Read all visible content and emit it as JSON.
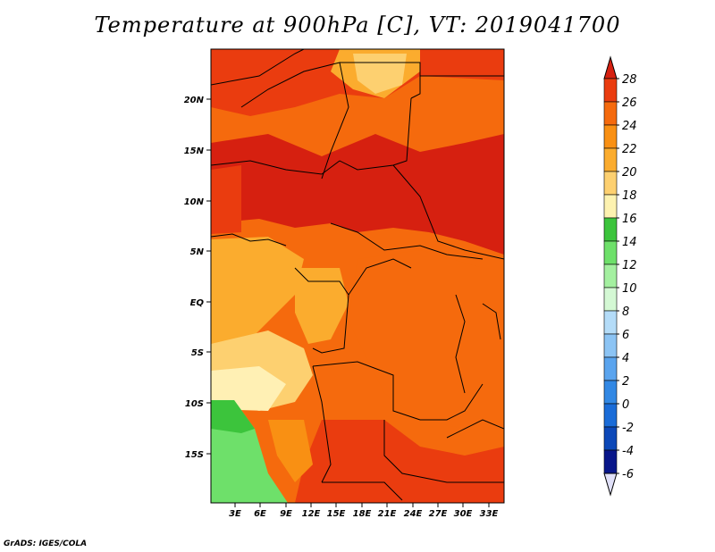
{
  "title": "Temperature at 900hPa [C], VT: 2019041700",
  "credit": "GrADS: IGES/COLA",
  "lat_ticks": [
    "20N",
    "15N",
    "10N",
    "5N",
    "EQ",
    "5S",
    "10S",
    "15S"
  ],
  "lon_ticks": [
    "3E",
    "6E",
    "9E",
    "12E",
    "15E",
    "18E",
    "21E",
    "24E",
    "27E",
    "30E",
    "33E"
  ],
  "colorbar": {
    "labels": [
      "28",
      "26",
      "24",
      "22",
      "20",
      "18",
      "16",
      "14",
      "12",
      "10",
      "8",
      "6",
      "4",
      "2",
      "0",
      "-2",
      "-4",
      "-6"
    ],
    "colors": [
      "#d62010",
      "#ea3c0f",
      "#f56a0d",
      "#f99013",
      "#fbac2e",
      "#fdd070",
      "#fdf2b0",
      "#3cc43c",
      "#6ee06a",
      "#a4f0a0",
      "#d4f8d4",
      "#b4dcf8",
      "#8cc4f4",
      "#5aa4ee",
      "#3288e4",
      "#1a6cd8",
      "#0c48b8",
      "#08168a"
    ],
    "over_color": "#d62010",
    "under_color": "#e0e0f8"
  },
  "legend": {
    "warm": "#e01a08",
    "hot": "#f45a0c",
    "mid": "#f88012",
    "warmish": "#fba02c",
    "mild": "#fcc050",
    "cool": "#fde08a",
    "pale": "#fff0b4",
    "green1": "#3cc43c",
    "green2": "#6ee06a"
  }
}
